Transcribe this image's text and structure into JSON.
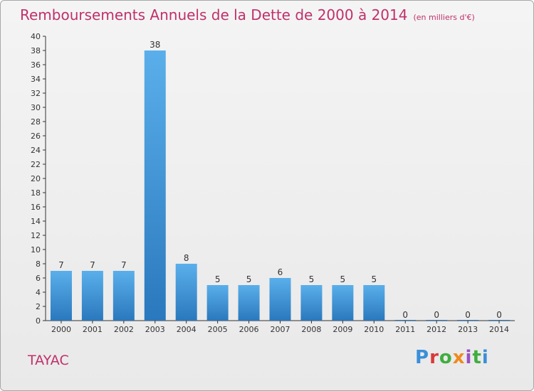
{
  "header": {
    "title": "Remboursements Annuels de la Dette de 2000 à 2014",
    "unit": "(en milliers d'€)"
  },
  "footer": {
    "commune": "TAYAC",
    "logo": "Proxiti"
  },
  "colors": {
    "title": "#c0306a",
    "bar_top": "#5aafea",
    "bar_bottom": "#2a78bd",
    "axis": "#333333",
    "grid": "#cfcfcf"
  },
  "chart_data": {
    "type": "bar",
    "title": "Remboursements Annuels de la Dette de 2000 à 2014",
    "xlabel": "",
    "ylabel": "",
    "categories": [
      "2000",
      "2001",
      "2002",
      "2003",
      "2004",
      "2005",
      "2006",
      "2007",
      "2008",
      "2009",
      "2010",
      "2011",
      "2012",
      "2013",
      "2014"
    ],
    "values": [
      7,
      7,
      7,
      38,
      8,
      5,
      5,
      6,
      5,
      5,
      5,
      0,
      0,
      0,
      0
    ],
    "ylim": [
      0,
      40
    ],
    "yticks": [
      0,
      2,
      4,
      6,
      8,
      10,
      12,
      14,
      16,
      18,
      20,
      22,
      24,
      26,
      28,
      30,
      32,
      34,
      36,
      38,
      40
    ],
    "grid": false,
    "legend": "none"
  }
}
